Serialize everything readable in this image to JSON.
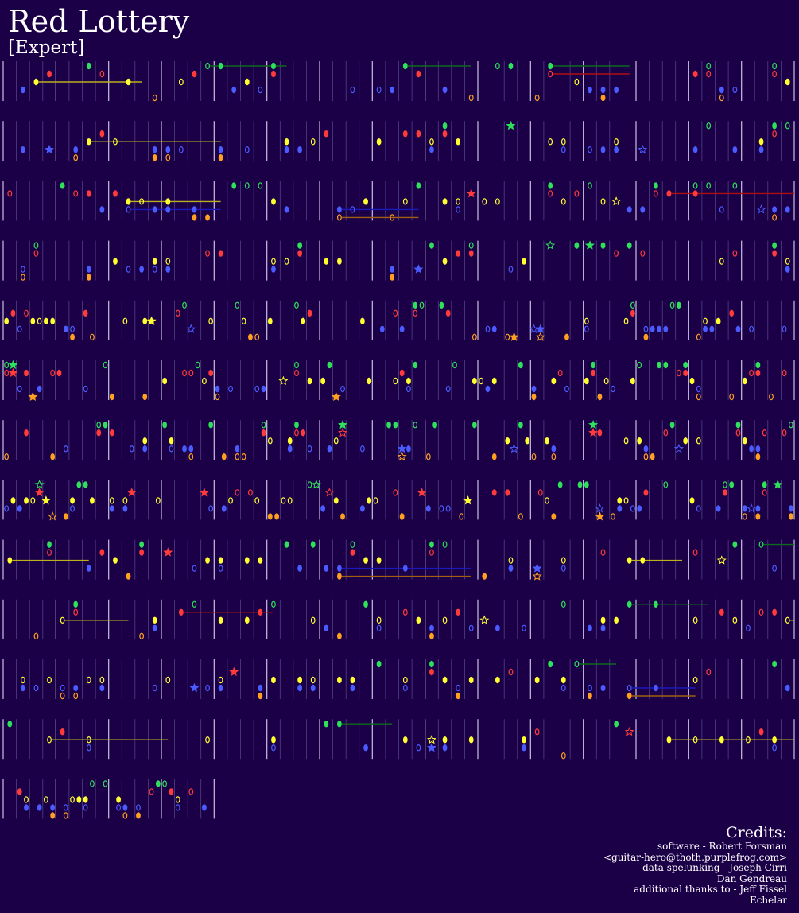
{
  "song": {
    "title": "Red Lottery",
    "difficulty": "[Expert]"
  },
  "colors": {
    "background": "#1b0048",
    "green": "#2ee05a",
    "red": "#ff3b3b",
    "yellow": "#ffff30",
    "blue": "#4a5cff",
    "orange": "#ffa020",
    "measure_line": "#e9e6ff",
    "beat_line": "#6a5aa0",
    "sustain_green": "#0c6a1c",
    "sustain_red": "#aa1010",
    "sustain_yellow": "#bbb020",
    "sustain_blue": "#1b1bbb",
    "sustain_orange": "#a06010"
  },
  "chart": {
    "rows": 13,
    "last_row_beats": 16,
    "lanes": [
      "green",
      "red",
      "yellow",
      "blue",
      "orange"
    ]
  },
  "credits": {
    "heading": "Credits:",
    "lines": [
      "software - Robert Forsman",
      "<guitar-hero@thoth.purplefrog.com>",
      "data spelunking - Joseph Cirri",
      "Dan Gendreau",
      "additional thanks to - Jeff Fissel",
      "Echelar"
    ]
  }
}
